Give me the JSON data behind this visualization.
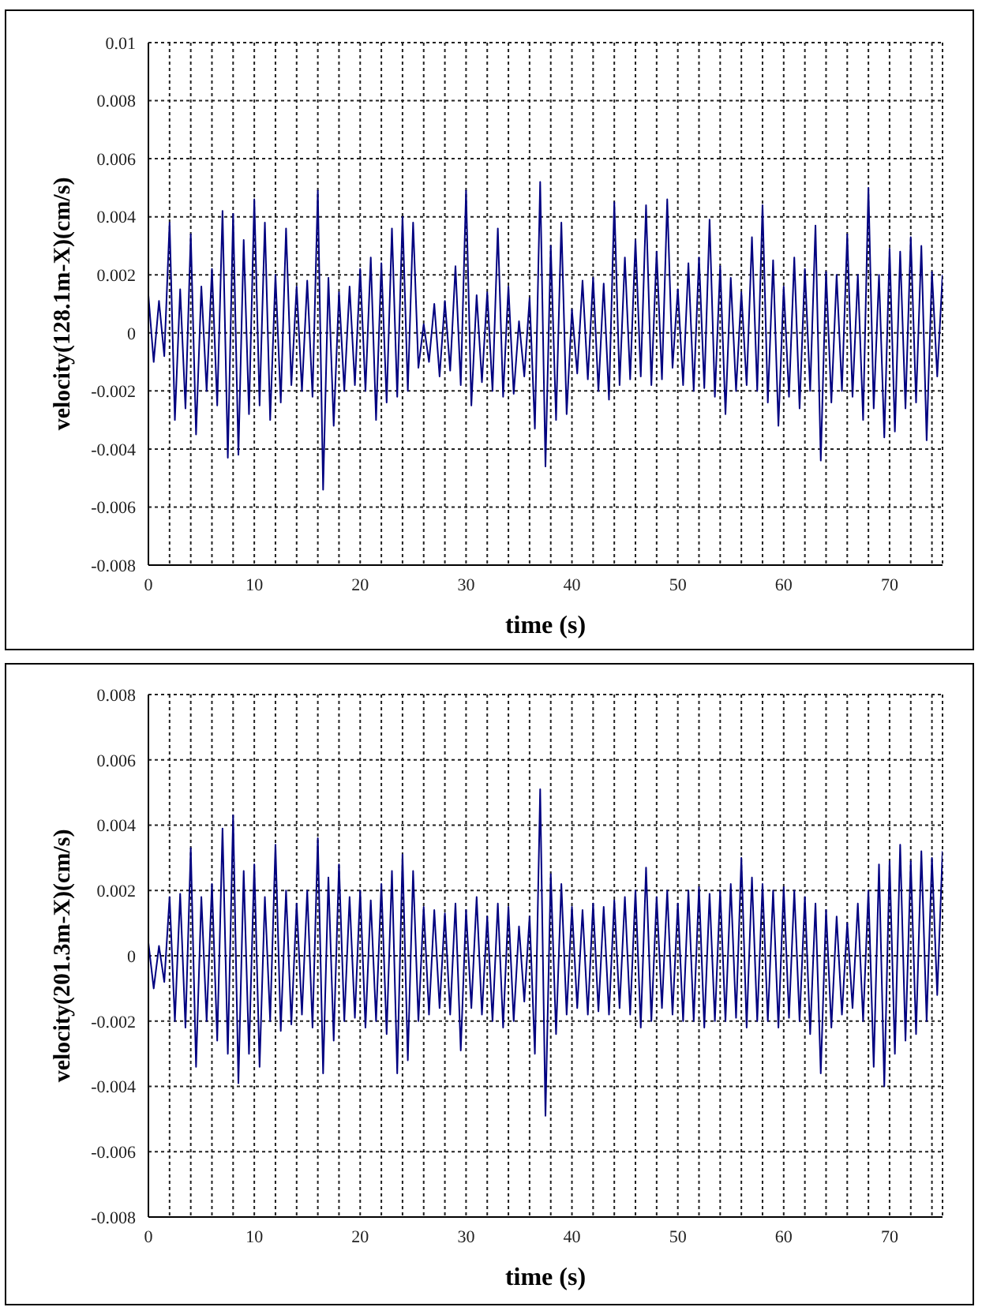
{
  "chart_data": [
    {
      "type": "line",
      "xlabel": "time (s)",
      "ylabel": "velocity(128.1m-X)(cm/s)",
      "color": "#000080",
      "marker": "none",
      "grid": true,
      "xlim": [
        0,
        75
      ],
      "ylim": [
        -0.008,
        0.01
      ],
      "xticks": [
        0,
        {
          "value": 2,
          "label": null
        },
        {
          "value": 4,
          "label": null
        },
        {
          "value": 6,
          "label": null
        },
        {
          "value": 8,
          "label": null
        },
        10,
        {
          "value": 12,
          "label": null
        },
        {
          "value": 14,
          "label": null
        },
        {
          "value": 16,
          "label": null
        },
        {
          "value": 18,
          "label": null
        },
        20,
        {
          "value": 22,
          "label": null
        },
        {
          "value": 24,
          "label": null
        },
        {
          "value": 26,
          "label": null
        },
        {
          "value": 28,
          "label": null
        },
        30,
        {
          "value": 32,
          "label": null
        },
        {
          "value": 34,
          "label": null
        },
        {
          "value": 36,
          "label": null
        },
        {
          "value": 38,
          "label": null
        },
        40,
        {
          "value": 42,
          "label": null
        },
        {
          "value": 44,
          "label": null
        },
        {
          "value": 46,
          "label": null
        },
        {
          "value": 48,
          "label": null
        },
        50,
        {
          "value": 52,
          "label": null
        },
        {
          "value": 54,
          "label": null
        },
        {
          "value": 56,
          "label": null
        },
        {
          "value": 58,
          "label": null
        },
        60,
        {
          "value": 62,
          "label": null
        },
        {
          "value": 64,
          "label": null
        },
        {
          "value": 66,
          "label": null
        },
        {
          "value": 68,
          "label": null
        },
        70,
        {
          "value": 72,
          "label": null
        },
        {
          "value": 74,
          "label": null
        }
      ],
      "yticks": [
        -0.008,
        -0.006,
        -0.004,
        -0.002,
        0,
        0.002,
        0.004,
        0.006,
        0.008,
        0.01
      ],
      "x": [
        0,
        0.5,
        1,
        1.5,
        2,
        2.5,
        3,
        3.5,
        4,
        4.5,
        5,
        5.5,
        6,
        6.5,
        7,
        7.5,
        8,
        8.5,
        9,
        9.5,
        10,
        10.5,
        11,
        11.5,
        12,
        12.5,
        13,
        13.5,
        14,
        14.5,
        15,
        15.5,
        16,
        16.5,
        17,
        17.5,
        18,
        18.5,
        19,
        19.5,
        20,
        20.5,
        21,
        21.5,
        22,
        22.5,
        23,
        23.5,
        24,
        24.5,
        25,
        25.5,
        26,
        26.5,
        27,
        27.5,
        28,
        28.5,
        29,
        29.5,
        30,
        30.5,
        31,
        31.5,
        32,
        32.5,
        33,
        33.5,
        34,
        34.5,
        35,
        35.5,
        36,
        36.5,
        37,
        37.5,
        38,
        38.5,
        39,
        39.5,
        40,
        40.5,
        41,
        41.5,
        42,
        42.5,
        43,
        43.5,
        44,
        44.5,
        45,
        45.5,
        46,
        46.5,
        47,
        47.5,
        48,
        48.5,
        49,
        49.5,
        50,
        50.5,
        51,
        51.5,
        52,
        52.5,
        53,
        53.5,
        54,
        54.5,
        55,
        55.5,
        56,
        56.5,
        57,
        57.5,
        58,
        58.5,
        59,
        59.5,
        60,
        60.5,
        61,
        61.5,
        62,
        62.5,
        63,
        63.5,
        64,
        64.5,
        65,
        65.5,
        66,
        66.5,
        67,
        67.5,
        68,
        68.5,
        69,
        69.5,
        70,
        70.5,
        71,
        71.5,
        72,
        72.5,
        73,
        73.5,
        74,
        74.5,
        75
      ],
      "values": [
        0.0013,
        -0.001,
        0.0011,
        -0.0008,
        0.0038,
        -0.003,
        0.0015,
        -0.0026,
        0.0034,
        -0.0035,
        0.0016,
        -0.002,
        0.0022,
        -0.0025,
        0.0042,
        -0.0043,
        0.0041,
        -0.0042,
        0.0032,
        -0.0028,
        0.0046,
        -0.0025,
        0.0038,
        -0.003,
        0.002,
        -0.0024,
        0.0036,
        -0.0018,
        0.0016,
        -0.002,
        0.0018,
        -0.0022,
        0.0049,
        -0.0054,
        0.0019,
        -0.0032,
        0.0014,
        -0.002,
        0.0016,
        -0.0018,
        0.0022,
        -0.002,
        0.0026,
        -0.003,
        0.0024,
        -0.0024,
        0.0036,
        -0.0022,
        0.004,
        -0.002,
        0.0038,
        -0.0012,
        0.0003,
        -0.001,
        0.001,
        -0.0015,
        0.0011,
        -0.0013,
        0.0023,
        -0.0018,
        0.0049,
        -0.0025,
        0.0013,
        -0.0017,
        0.0014,
        -0.002,
        0.0036,
        -0.0022,
        0.0016,
        -0.0021,
        0.0004,
        -0.0015,
        0.0012,
        -0.0033,
        0.0052,
        -0.0046,
        0.003,
        -0.003,
        0.0038,
        -0.0028,
        0.0008,
        -0.0014,
        0.0018,
        -0.0016,
        0.0019,
        -0.002,
        0.0017,
        -0.0023,
        0.0045,
        -0.0018,
        0.0026,
        -0.0016,
        0.0032,
        -0.0015,
        0.0044,
        -0.0018,
        0.0028,
        -0.0016,
        0.0046,
        -0.0012,
        0.0015,
        -0.0018,
        0.0024,
        -0.002,
        0.0026,
        -0.0019,
        0.0039,
        -0.0022,
        0.0023,
        -0.0028,
        0.0019,
        -0.002,
        0.0014,
        -0.0018,
        0.0033,
        -0.002,
        0.0044,
        -0.0024,
        0.0025,
        -0.0032,
        0.0016,
        -0.0022,
        0.0026,
        -0.0026,
        0.0022,
        -0.002,
        0.0037,
        -0.0044,
        0.0021,
        -0.0024,
        0.002,
        -0.002,
        0.0034,
        -0.0022,
        0.002,
        -0.003,
        0.005,
        -0.0026,
        0.002,
        -0.0036,
        0.0029,
        -0.0034,
        0.0028,
        -0.0026,
        0.0033,
        -0.0024,
        0.003,
        -0.0037,
        0.0021,
        -0.0015,
        0.002
      ]
    },
    {
      "type": "line",
      "xlabel": "time (s)",
      "ylabel": "velocity(201.3m-X)(cm/s)",
      "color": "#000080",
      "marker": "none",
      "grid": true,
      "xlim": [
        0,
        75
      ],
      "ylim": [
        -0.008,
        0.008
      ],
      "xticks": [
        0,
        {
          "value": 2,
          "label": null
        },
        {
          "value": 4,
          "label": null
        },
        {
          "value": 6,
          "label": null
        },
        {
          "value": 8,
          "label": null
        },
        10,
        {
          "value": 12,
          "label": null
        },
        {
          "value": 14,
          "label": null
        },
        {
          "value": 16,
          "label": null
        },
        {
          "value": 18,
          "label": null
        },
        20,
        {
          "value": 22,
          "label": null
        },
        {
          "value": 24,
          "label": null
        },
        {
          "value": 26,
          "label": null
        },
        {
          "value": 28,
          "label": null
        },
        30,
        {
          "value": 32,
          "label": null
        },
        {
          "value": 34,
          "label": null
        },
        {
          "value": 36,
          "label": null
        },
        {
          "value": 38,
          "label": null
        },
        40,
        {
          "value": 42,
          "label": null
        },
        {
          "value": 44,
          "label": null
        },
        {
          "value": 46,
          "label": null
        },
        {
          "value": 48,
          "label": null
        },
        50,
        {
          "value": 52,
          "label": null
        },
        {
          "value": 54,
          "label": null
        },
        {
          "value": 56,
          "label": null
        },
        {
          "value": 58,
          "label": null
        },
        60,
        {
          "value": 62,
          "label": null
        },
        {
          "value": 64,
          "label": null
        },
        {
          "value": 66,
          "label": null
        },
        {
          "value": 68,
          "label": null
        },
        70,
        {
          "value": 72,
          "label": null
        },
        {
          "value": 74,
          "label": null
        }
      ],
      "yticks": [
        -0.008,
        -0.006,
        -0.004,
        -0.002,
        0,
        0.002,
        0.004,
        0.006,
        0.008
      ],
      "x": [
        0,
        0.5,
        1,
        1.5,
        2,
        2.5,
        3,
        3.5,
        4,
        4.5,
        5,
        5.5,
        6,
        6.5,
        7,
        7.5,
        8,
        8.5,
        9,
        9.5,
        10,
        10.5,
        11,
        11.5,
        12,
        12.5,
        13,
        13.5,
        14,
        14.5,
        15,
        15.5,
        16,
        16.5,
        17,
        17.5,
        18,
        18.5,
        19,
        19.5,
        20,
        20.5,
        21,
        21.5,
        22,
        22.5,
        23,
        23.5,
        24,
        24.5,
        25,
        25.5,
        26,
        26.5,
        27,
        27.5,
        28,
        28.5,
        29,
        29.5,
        30,
        30.5,
        31,
        31.5,
        32,
        32.5,
        33,
        33.5,
        34,
        34.5,
        35,
        35.5,
        36,
        36.5,
        37,
        37.5,
        38,
        38.5,
        39,
        39.5,
        40,
        40.5,
        41,
        41.5,
        42,
        42.5,
        43,
        43.5,
        44,
        44.5,
        45,
        45.5,
        46,
        46.5,
        47,
        47.5,
        48,
        48.5,
        49,
        49.5,
        50,
        50.5,
        51,
        51.5,
        52,
        52.5,
        53,
        53.5,
        54,
        54.5,
        55,
        55.5,
        56,
        56.5,
        57,
        57.5,
        58,
        58.5,
        59,
        59.5,
        60,
        60.5,
        61,
        61.5,
        62,
        62.5,
        63,
        63.5,
        64,
        64.5,
        65,
        65.5,
        66,
        66.5,
        67,
        67.5,
        68,
        68.5,
        69,
        69.5,
        70,
        70.5,
        71,
        71.5,
        72,
        72.5,
        73,
        73.5,
        74,
        74.5,
        75
      ],
      "values": [
        0.0004,
        -0.001,
        0.0003,
        -0.0008,
        0.0018,
        -0.002,
        0.0019,
        -0.0022,
        0.0033,
        -0.0034,
        0.0018,
        -0.002,
        0.0022,
        -0.0026,
        0.0039,
        -0.003,
        0.0043,
        -0.0039,
        0.0026,
        -0.003,
        0.0028,
        -0.0034,
        0.0018,
        -0.002,
        0.0034,
        -0.0023,
        0.002,
        -0.0021,
        0.0016,
        -0.0018,
        0.002,
        -0.0022,
        0.0036,
        -0.0036,
        0.0024,
        -0.0026,
        0.0028,
        -0.002,
        0.0018,
        -0.0019,
        0.002,
        -0.0022,
        0.0017,
        -0.002,
        0.0022,
        -0.0024,
        0.0026,
        -0.0036,
        0.0031,
        -0.0032,
        0.0026,
        -0.002,
        0.0015,
        -0.0018,
        0.0014,
        -0.0016,
        0.0013,
        -0.0018,
        0.0016,
        -0.0029,
        0.0014,
        -0.0016,
        0.0018,
        -0.0018,
        0.0012,
        -0.002,
        0.0016,
        -0.0022,
        0.0015,
        -0.002,
        0.0009,
        -0.0014,
        0.0012,
        -0.003,
        0.0051,
        -0.0049,
        0.0025,
        -0.0024,
        0.0022,
        -0.0018,
        0.0015,
        -0.0016,
        0.0014,
        -0.0018,
        0.0016,
        -0.0017,
        0.0015,
        -0.0018,
        0.0017,
        -0.0016,
        0.0018,
        -0.0018,
        0.002,
        -0.0022,
        0.0027,
        -0.002,
        0.0018,
        -0.0016,
        0.002,
        -0.0018,
        0.0016,
        -0.002,
        0.002,
        -0.002,
        0.0021,
        -0.0022,
        0.0019,
        -0.002,
        0.002,
        -0.002,
        0.0022,
        -0.0019,
        0.003,
        -0.0022,
        0.0024,
        -0.002,
        0.0022,
        -0.002,
        0.002,
        -0.0022,
        0.0021,
        -0.0019,
        0.002,
        -0.002,
        0.0018,
        -0.0024,
        0.0016,
        -0.0036,
        0.0014,
        -0.0022,
        0.0012,
        -0.0018,
        0.001,
        -0.0016,
        0.0016,
        -0.002,
        0.002,
        -0.0034,
        0.0028,
        -0.004,
        0.0029,
        -0.003,
        0.0034,
        -0.0026,
        0.0029,
        -0.0024,
        0.0032,
        -0.002,
        0.003,
        -0.0012,
        0.0032
      ]
    }
  ]
}
